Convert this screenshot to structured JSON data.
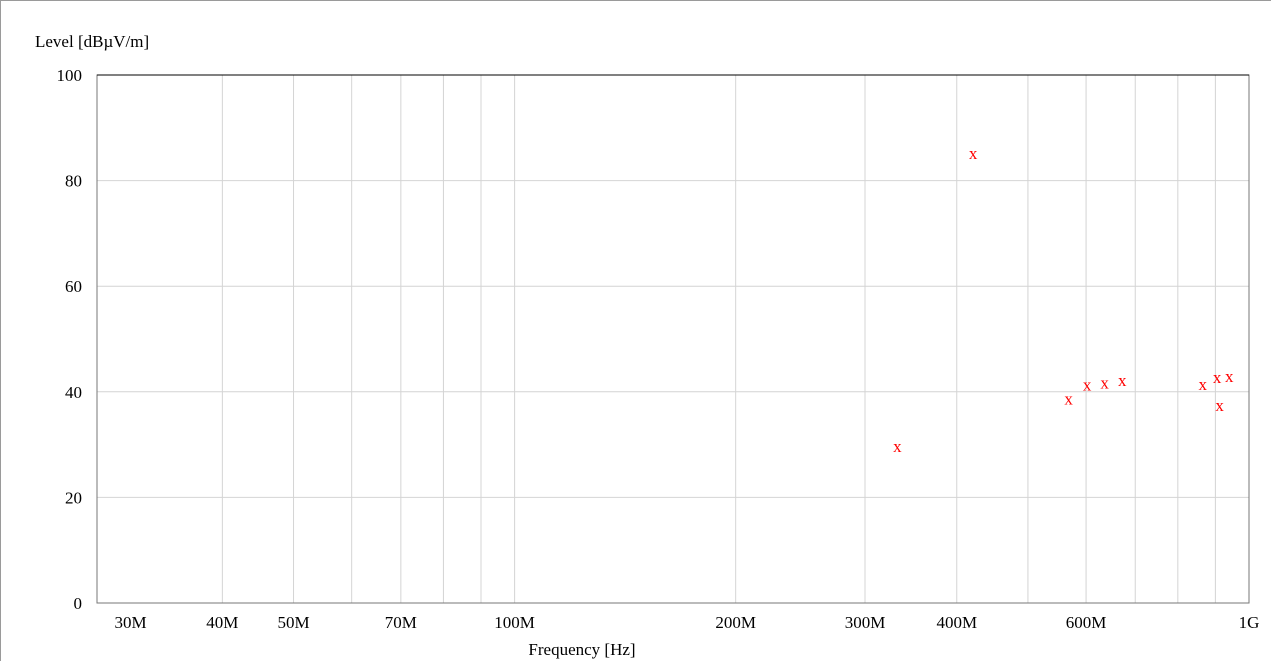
{
  "chart_data": {
    "type": "scatter",
    "title": "",
    "xlabel": "Frequency [Hz]",
    "ylabel": "Level [dBµV/m]",
    "x_scale": "log",
    "xlim": [
      27000000,
      1000000000
    ],
    "ylim": [
      0,
      100
    ],
    "grid": true,
    "y_ticks": [
      {
        "value": 0,
        "label": "0"
      },
      {
        "value": 20,
        "label": "20"
      },
      {
        "value": 40,
        "label": "40"
      },
      {
        "value": 60,
        "label": "60"
      },
      {
        "value": 80,
        "label": "80"
      },
      {
        "value": 100,
        "label": "100"
      }
    ],
    "x_ticks": [
      {
        "value": 30000000,
        "label": "30M"
      },
      {
        "value": 40000000,
        "label": "40M"
      },
      {
        "value": 50000000,
        "label": "50M"
      },
      {
        "value": 70000000,
        "label": "70M"
      },
      {
        "value": 100000000,
        "label": "100M"
      },
      {
        "value": 200000000,
        "label": "200M"
      },
      {
        "value": 300000000,
        "label": "300M"
      },
      {
        "value": 400000000,
        "label": "400M"
      },
      {
        "value": 600000000,
        "label": "600M"
      },
      {
        "value": 1000000000,
        "label": "1G"
      }
    ],
    "x_gridlines": [
      40000000,
      50000000,
      60000000,
      70000000,
      80000000,
      90000000,
      100000000,
      200000000,
      300000000,
      400000000,
      500000000,
      600000000,
      700000000,
      800000000,
      900000000
    ],
    "series": [
      {
        "marker": "x",
        "color": "#ff0000",
        "points": [
          {
            "x": 332000000,
            "y": 29.5
          },
          {
            "x": 421000000,
            "y": 85.0
          },
          {
            "x": 568000000,
            "y": 38.5
          },
          {
            "x": 602000000,
            "y": 41.2
          },
          {
            "x": 636000000,
            "y": 41.6
          },
          {
            "x": 672000000,
            "y": 42.0
          },
          {
            "x": 865000000,
            "y": 41.3
          },
          {
            "x": 905000000,
            "y": 42.6
          },
          {
            "x": 912000000,
            "y": 37.3
          },
          {
            "x": 940000000,
            "y": 42.8
          }
        ]
      }
    ]
  }
}
